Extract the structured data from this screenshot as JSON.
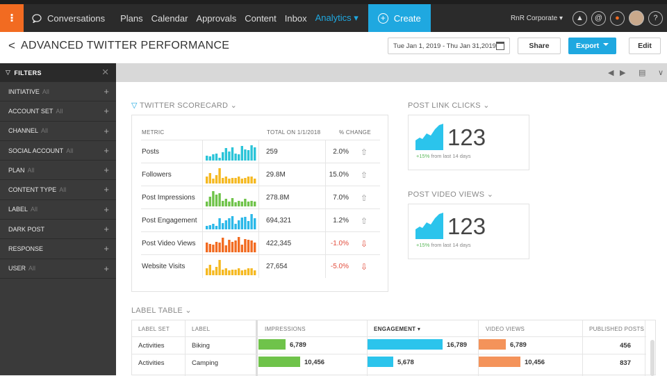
{
  "nav": {
    "logo": "⁝",
    "items": [
      "Conversations",
      "Plans",
      "Calendar",
      "Approvals",
      "Content",
      "Inbox",
      "Analytics ▾"
    ],
    "create": "Create",
    "org": "RnR Corporate ▾"
  },
  "header": {
    "back": "<",
    "title": "ADVANCED TWITTER PERFORMANCE",
    "daterange": "Tue Jan 1, 2019 - Thu Jan 31,2019",
    "share": "Share",
    "export": "Export",
    "edit": "Edit"
  },
  "filters": {
    "title": "FILTERS",
    "items": [
      {
        "label": "INITIATIVE",
        "value": "All"
      },
      {
        "label": "ACCOUNT SET",
        "value": "All"
      },
      {
        "label": "CHANNEL",
        "value": "All"
      },
      {
        "label": "SOCIAL ACCOUNT",
        "value": "All"
      },
      {
        "label": "PLAN",
        "value": "All"
      },
      {
        "label": "CONTENT TYPE",
        "value": "All"
      },
      {
        "label": "LABEL",
        "value": "All"
      },
      {
        "label": "DARK POST",
        "value": ""
      },
      {
        "label": "RESPONSE",
        "value": ""
      },
      {
        "label": "USER",
        "value": "All"
      }
    ]
  },
  "scorecard": {
    "title": "TWITTER SCORECARD ⌄",
    "col_metric": "METRIC",
    "col_total": "TOTAL ON 1/1/2018",
    "col_change": "% CHANGE",
    "rows": [
      {
        "metric": "Posts",
        "total": "259",
        "change": "2.0%",
        "dir": "up",
        "color": "#2bc4d8",
        "bars": [
          5,
          4,
          6,
          7,
          3,
          8,
          12,
          9,
          13,
          7,
          6,
          14,
          11,
          10,
          15,
          13
        ]
      },
      {
        "metric": "Followers",
        "total": "29.8M",
        "change": "15.0%",
        "dir": "up",
        "color": "#f5b921",
        "bars": [
          6,
          9,
          4,
          7,
          13,
          5,
          6,
          4,
          5,
          5,
          6,
          4,
          5,
          6,
          6,
          4
        ]
      },
      {
        "metric": "Post Impressions",
        "total": "278.8M",
        "change": "7.0%",
        "dir": "up",
        "color": "#6fc34a",
        "bars": [
          5,
          10,
          16,
          12,
          14,
          6,
          8,
          5,
          9,
          4,
          6,
          5,
          8,
          5,
          6,
          5
        ]
      },
      {
        "metric": "Post Engagement",
        "total": "694,321",
        "change": "1.2%",
        "dir": "up",
        "color": "#2bb8e8",
        "bars": [
          4,
          5,
          6,
          4,
          12,
          7,
          10,
          12,
          15,
          6,
          10,
          13,
          14,
          9,
          17,
          12
        ]
      },
      {
        "metric": "Post Video Views",
        "total": "422,345",
        "change": "-1.0%",
        "dir": "down",
        "color": "#f26b21",
        "bars": [
          10,
          9,
          8,
          11,
          10,
          15,
          7,
          13,
          11,
          12,
          16,
          8,
          14,
          13,
          12,
          10
        ]
      },
      {
        "metric": "Website Visits",
        "total": "27,654",
        "change": "-5.0%",
        "dir": "down",
        "color": "#f5b921",
        "bars": [
          6,
          9,
          4,
          7,
          13,
          5,
          6,
          4,
          5,
          5,
          6,
          4,
          5,
          6,
          6,
          4
        ]
      }
    ]
  },
  "link_clicks": {
    "title": "POST LINK CLICKS ⌄",
    "value": "123",
    "delta": "+15%",
    "sub": "from last 14 days"
  },
  "video_views": {
    "title": "POST VIDEO VIEWS ⌄",
    "value": "123",
    "delta": "+15%",
    "sub": "from last 14 days"
  },
  "label_table": {
    "title": "LABEL TABLE ⌄",
    "headers": [
      "LABEL SET",
      "LABEL",
      "IMPRESSIONS",
      "ENGAGEMENT ▾",
      "VIDEO VIEWS",
      "PUBLISHED POSTS"
    ],
    "max": {
      "impressions": 10456,
      "engagement": 16789,
      "video_views": 10456
    },
    "rows": [
      {
        "set": "Activities",
        "label": "Biking",
        "impressions": 6789,
        "impressions_label": "6,789",
        "engagement": 16789,
        "engagement_label": "16,789",
        "video_views": 6789,
        "video_views_label": "6,789",
        "posts": "456"
      },
      {
        "set": "Activities",
        "label": "Camping",
        "impressions": 10456,
        "impressions_label": "10,456",
        "engagement": 5678,
        "engagement_label": "5,678",
        "video_views": 10456,
        "video_views_label": "10,456",
        "posts": "837"
      }
    ]
  },
  "colors": {
    "accent": "#1fa8e0",
    "orange": "#f26b21",
    "green": "#6fc34a",
    "cyan": "#2bc4ec",
    "salmon": "#f4935a",
    "up": "#999",
    "down": "#e24b3b"
  }
}
